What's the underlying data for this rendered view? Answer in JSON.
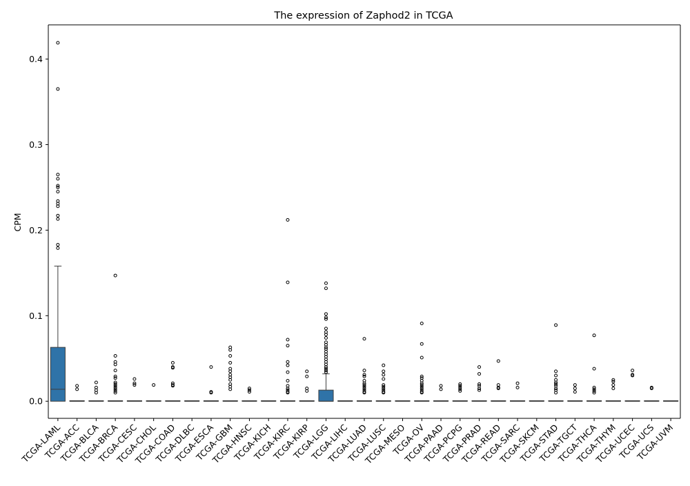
{
  "chart_data": {
    "type": "box",
    "title": "The expression of Zaphod2 in TCGA",
    "xlabel": "",
    "ylabel": "CPM",
    "ylim": [
      -0.02,
      0.44
    ],
    "yticks": [
      0.0,
      0.1,
      0.2,
      0.3,
      0.4
    ],
    "ytick_labels": [
      "0.0",
      "0.1",
      "0.2",
      "0.3",
      "0.4"
    ],
    "grid": false,
    "box_color": "#2f73a8",
    "categories": [
      "TCGA-LAML",
      "TCGA-ACC",
      "TCGA-BLCA",
      "TCGA-BRCA",
      "TCGA-CESC",
      "TCGA-CHOL",
      "TCGA-COAD",
      "TCGA-DLBC",
      "TCGA-ESCA",
      "TCGA-GBM",
      "TCGA-HNSC",
      "TCGA-KICH",
      "TCGA-KIRC",
      "TCGA-KIRP",
      "TCGA-LGG",
      "TCGA-LIHC",
      "TCGA-LUAD",
      "TCGA-LUSC",
      "TCGA-MESO",
      "TCGA-OV",
      "TCGA-PAAD",
      "TCGA-PCPG",
      "TCGA-PRAD",
      "TCGA-READ",
      "TCGA-SARC",
      "TCGA-SKCM",
      "TCGA-STAD",
      "TCGA-TGCT",
      "TCGA-THCA",
      "TCGA-THYM",
      "TCGA-UCEC",
      "TCGA-UCS",
      "TCGA-UVM"
    ],
    "boxes": [
      {
        "q1": 0.0,
        "median": 0.014,
        "q3": 0.063,
        "whisker_low": 0.0,
        "whisker_high": 0.158,
        "outliers": [
          0.419,
          0.365,
          0.265,
          0.26,
          0.252,
          0.25,
          0.245,
          0.234,
          0.231,
          0.228,
          0.217,
          0.213,
          0.183,
          0.179
        ]
      },
      {
        "q1": 0.0,
        "median": 0.0,
        "q3": 0.0,
        "whisker_low": 0.0,
        "whisker_high": 0.0,
        "outliers": [
          0.018,
          0.014
        ]
      },
      {
        "q1": 0.0,
        "median": 0.0,
        "q3": 0.0,
        "whisker_low": 0.0,
        "whisker_high": 0.0,
        "outliers": [
          0.022,
          0.016,
          0.013,
          0.01
        ]
      },
      {
        "q1": 0.0,
        "median": 0.0,
        "q3": 0.0,
        "whisker_low": 0.0,
        "whisker_high": 0.0,
        "outliers": [
          0.147,
          0.053,
          0.046,
          0.043,
          0.036,
          0.029,
          0.027,
          0.022,
          0.02,
          0.018,
          0.016,
          0.014,
          0.012,
          0.01
        ]
      },
      {
        "q1": 0.0,
        "median": 0.0,
        "q3": 0.0,
        "whisker_low": 0.0,
        "whisker_high": 0.0,
        "outliers": [
          0.026,
          0.021,
          0.019
        ]
      },
      {
        "q1": 0.0,
        "median": 0.0,
        "q3": 0.0,
        "whisker_low": 0.0,
        "whisker_high": 0.0,
        "outliers": [
          0.019
        ]
      },
      {
        "q1": 0.0,
        "median": 0.0,
        "q3": 0.0,
        "whisker_low": 0.0,
        "whisker_high": 0.0,
        "outliers": [
          0.045,
          0.04,
          0.039,
          0.021,
          0.019,
          0.018
        ]
      },
      {
        "q1": 0.0,
        "median": 0.0,
        "q3": 0.0,
        "whisker_low": 0.0,
        "whisker_high": 0.0,
        "outliers": []
      },
      {
        "q1": 0.0,
        "median": 0.0,
        "q3": 0.0,
        "whisker_low": 0.0,
        "whisker_high": 0.0,
        "outliers": [
          0.04,
          0.011,
          0.01
        ]
      },
      {
        "q1": 0.0,
        "median": 0.0,
        "q3": 0.0,
        "whisker_low": 0.0,
        "whisker_high": 0.0,
        "outliers": [
          0.063,
          0.06,
          0.053,
          0.045,
          0.038,
          0.035,
          0.031,
          0.028,
          0.025,
          0.02,
          0.017,
          0.014
        ]
      },
      {
        "q1": 0.0,
        "median": 0.0,
        "q3": 0.0,
        "whisker_low": 0.0,
        "whisker_high": 0.0,
        "outliers": [
          0.015,
          0.013,
          0.011
        ]
      },
      {
        "q1": 0.0,
        "median": 0.0,
        "q3": 0.0,
        "whisker_low": 0.0,
        "whisker_high": 0.0,
        "outliers": []
      },
      {
        "q1": 0.0,
        "median": 0.0,
        "q3": 0.0,
        "whisker_low": 0.0,
        "whisker_high": 0.0,
        "outliers": [
          0.212,
          0.139,
          0.072,
          0.065,
          0.046,
          0.042,
          0.034,
          0.024,
          0.018,
          0.015,
          0.013,
          0.011,
          0.01
        ]
      },
      {
        "q1": 0.0,
        "median": 0.0,
        "q3": 0.0,
        "whisker_low": 0.0,
        "whisker_high": 0.0,
        "outliers": [
          0.035,
          0.029,
          0.015,
          0.012
        ]
      },
      {
        "q1": 0.0,
        "median": 0.0,
        "q3": 0.013,
        "whisker_low": 0.0,
        "whisker_high": 0.032,
        "outliers": [
          0.138,
          0.132,
          0.102,
          0.098,
          0.096,
          0.085,
          0.081,
          0.078,
          0.074,
          0.069,
          0.066,
          0.063,
          0.061,
          0.058,
          0.055,
          0.052,
          0.049,
          0.046,
          0.043,
          0.04,
          0.038,
          0.036,
          0.034
        ]
      },
      {
        "q1": 0.0,
        "median": 0.0,
        "q3": 0.0,
        "whisker_low": 0.0,
        "whisker_high": 0.0,
        "outliers": []
      },
      {
        "q1": 0.0,
        "median": 0.0,
        "q3": 0.0,
        "whisker_low": 0.0,
        "whisker_high": 0.0,
        "outliers": [
          0.073,
          0.036,
          0.031,
          0.029,
          0.024,
          0.021,
          0.019,
          0.017,
          0.015,
          0.013,
          0.011,
          0.01
        ]
      },
      {
        "q1": 0.0,
        "median": 0.0,
        "q3": 0.0,
        "whisker_low": 0.0,
        "whisker_high": 0.0,
        "outliers": [
          0.042,
          0.035,
          0.031,
          0.026,
          0.019,
          0.017,
          0.015,
          0.013,
          0.011,
          0.01
        ]
      },
      {
        "q1": 0.0,
        "median": 0.0,
        "q3": 0.0,
        "whisker_low": 0.0,
        "whisker_high": 0.0,
        "outliers": []
      },
      {
        "q1": 0.0,
        "median": 0.0,
        "q3": 0.0,
        "whisker_low": 0.0,
        "whisker_high": 0.0,
        "outliers": [
          0.091,
          0.067,
          0.051,
          0.029,
          0.027,
          0.024,
          0.021,
          0.019,
          0.017,
          0.015,
          0.013,
          0.011,
          0.01
        ]
      },
      {
        "q1": 0.0,
        "median": 0.0,
        "q3": 0.0,
        "whisker_low": 0.0,
        "whisker_high": 0.0,
        "outliers": [
          0.018,
          0.014
        ]
      },
      {
        "q1": 0.0,
        "median": 0.0,
        "q3": 0.0,
        "whisker_low": 0.0,
        "whisker_high": 0.0,
        "outliers": [
          0.02,
          0.018,
          0.016,
          0.014,
          0.012
        ]
      },
      {
        "q1": 0.0,
        "median": 0.0,
        "q3": 0.0,
        "whisker_low": 0.0,
        "whisker_high": 0.0,
        "outliers": [
          0.04,
          0.032,
          0.02,
          0.018,
          0.015,
          0.013
        ]
      },
      {
        "q1": 0.0,
        "median": 0.0,
        "q3": 0.0,
        "whisker_low": 0.0,
        "whisker_high": 0.0,
        "outliers": [
          0.047,
          0.019,
          0.016,
          0.015
        ]
      },
      {
        "q1": 0.0,
        "median": 0.0,
        "q3": 0.0,
        "whisker_low": 0.0,
        "whisker_high": 0.0,
        "outliers": [
          0.021,
          0.016
        ]
      },
      {
        "q1": 0.0,
        "median": 0.0,
        "q3": 0.0,
        "whisker_low": 0.0,
        "whisker_high": 0.0,
        "outliers": []
      },
      {
        "q1": 0.0,
        "median": 0.0,
        "q3": 0.0,
        "whisker_low": 0.0,
        "whisker_high": 0.0,
        "outliers": [
          0.089,
          0.035,
          0.03,
          0.025,
          0.022,
          0.02,
          0.018,
          0.015,
          0.013,
          0.01
        ]
      },
      {
        "q1": 0.0,
        "median": 0.0,
        "q3": 0.0,
        "whisker_low": 0.0,
        "whisker_high": 0.0,
        "outliers": [
          0.019,
          0.015,
          0.011
        ]
      },
      {
        "q1": 0.0,
        "median": 0.0,
        "q3": 0.0,
        "whisker_low": 0.0,
        "whisker_high": 0.0,
        "outliers": [
          0.077,
          0.038,
          0.016,
          0.014,
          0.012,
          0.01
        ]
      },
      {
        "q1": 0.0,
        "median": 0.0,
        "q3": 0.0,
        "whisker_low": 0.0,
        "whisker_high": 0.0,
        "outliers": [
          0.025,
          0.023,
          0.019,
          0.015
        ]
      },
      {
        "q1": 0.0,
        "median": 0.0,
        "q3": 0.0,
        "whisker_low": 0.0,
        "whisker_high": 0.0,
        "outliers": [
          0.036,
          0.031,
          0.03
        ]
      },
      {
        "q1": 0.0,
        "median": 0.0,
        "q3": 0.0,
        "whisker_low": 0.0,
        "whisker_high": 0.0,
        "outliers": [
          0.016,
          0.015
        ]
      },
      {
        "q1": 0.0,
        "median": 0.0,
        "q3": 0.0,
        "whisker_low": 0.0,
        "whisker_high": 0.0,
        "outliers": []
      }
    ]
  }
}
